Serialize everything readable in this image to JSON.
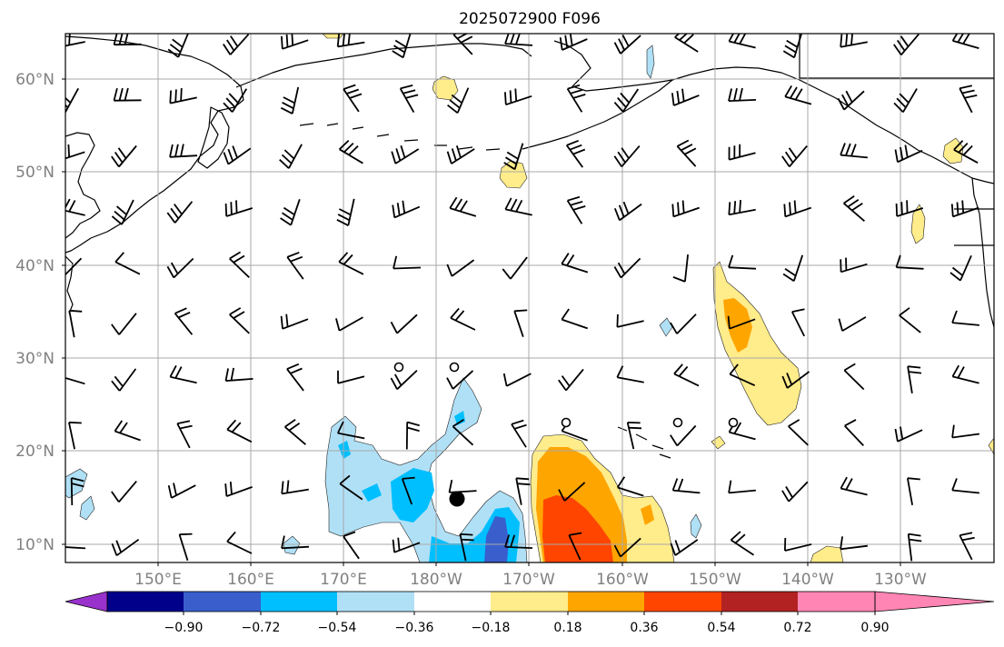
{
  "title": "2025072900 F096",
  "axes": {
    "lat_labels": [
      "60°N",
      "50°N",
      "40°N",
      "30°N",
      "20°N",
      "10°N"
    ],
    "lon_labels": [
      "150°E",
      "160°E",
      "170°E",
      "180°W",
      "170°W",
      "160°W",
      "150°W",
      "140°W",
      "130°W"
    ]
  },
  "colorbar": {
    "tick_labels": [
      "−0.90",
      "−0.72",
      "−0.54",
      "−0.36",
      "−0.18",
      "0.18",
      "0.36",
      "0.54",
      "0.72",
      "0.90"
    ],
    "colors": [
      "#9932cc",
      "#00008b",
      "#3a5fcd",
      "#00bfff",
      "#b0e0f6",
      "#ffffff",
      "#ffec8b",
      "#ffa500",
      "#ff4500",
      "#b22222",
      "#ff86b4"
    ]
  },
  "map": {
    "extent": "140°E to 118°W, 8°N to 65°N",
    "grid": true,
    "fields": [
      "shaded anomaly contours",
      "wind barbs",
      "station markers"
    ]
  }
}
